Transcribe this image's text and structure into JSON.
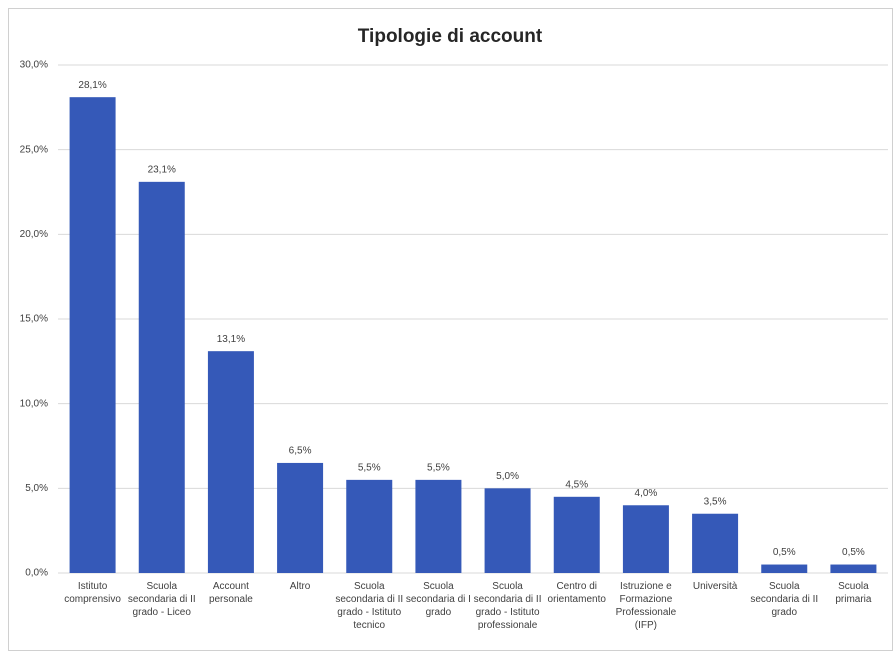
{
  "chart_data": {
    "type": "bar",
    "title": "Tipologie di account",
    "categories": [
      "Istituto comprensivo",
      "Scuola secondaria di II grado - Liceo",
      "Account personale",
      "Altro",
      "Scuola secondaria di II grado - Istituto tecnico",
      "Scuola secondaria di I grado",
      "Scuola secondaria di II grado - Istituto professionale",
      "Centro di orientamento",
      "Istruzione e Formazione Professionale (IFP)",
      "Università",
      "Scuola secondaria di II grado",
      "Scuola primaria"
    ],
    "values": [
      28.1,
      23.1,
      13.1,
      6.5,
      5.5,
      5.5,
      5.0,
      4.5,
      4.0,
      3.5,
      0.5,
      0.5
    ],
    "value_labels": [
      "28,1%",
      "23,1%",
      "13,1%",
      "6,5%",
      "5,5%",
      "5,5%",
      "5,0%",
      "4,5%",
      "4,0%",
      "3,5%",
      "0,5%",
      "0,5%"
    ],
    "color": "#3559b8",
    "ylim": [
      0,
      30
    ],
    "yticks": [
      {
        "value": 0,
        "label": "0,0%"
      },
      {
        "value": 5,
        "label": "5,0%"
      },
      {
        "value": 10,
        "label": "10,0%"
      },
      {
        "value": 15,
        "label": "15,0%"
      },
      {
        "value": 20,
        "label": "20,0%"
      },
      {
        "value": 25,
        "label": "25,0%"
      },
      {
        "value": 30,
        "label": "30,0%"
      }
    ],
    "grid": true
  }
}
